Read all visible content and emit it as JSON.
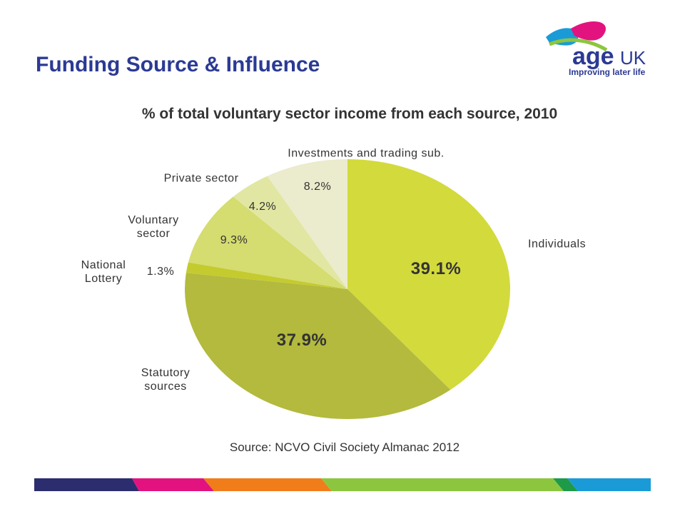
{
  "header": {
    "title": "Funding Source & Influence",
    "logo": {
      "brand": "age",
      "brand_suffix": "UK",
      "tagline": "Improving later life"
    }
  },
  "chart_data": {
    "type": "pie",
    "title": "% of total voluntary sector income from each source, 2010",
    "categories": [
      "Individuals",
      "Statutory\nsources",
      "National\nLottery",
      "Voluntary\nsector",
      "Private sector",
      "Investments and trading sub."
    ],
    "values": [
      39.1,
      37.9,
      1.3,
      9.3,
      4.2,
      8.2
    ],
    "value_labels": [
      "39.1%",
      "37.9%",
      "1.3%",
      "9.3%",
      "4.2%",
      "8.2%"
    ],
    "colors": [
      "#d3da3c",
      "#b3ba3d",
      "#c4cb2f",
      "#d5dc70",
      "#e1e7a2",
      "#ebebcd"
    ],
    "source": "Source: NCVO Civil Society Almanac 2012"
  }
}
